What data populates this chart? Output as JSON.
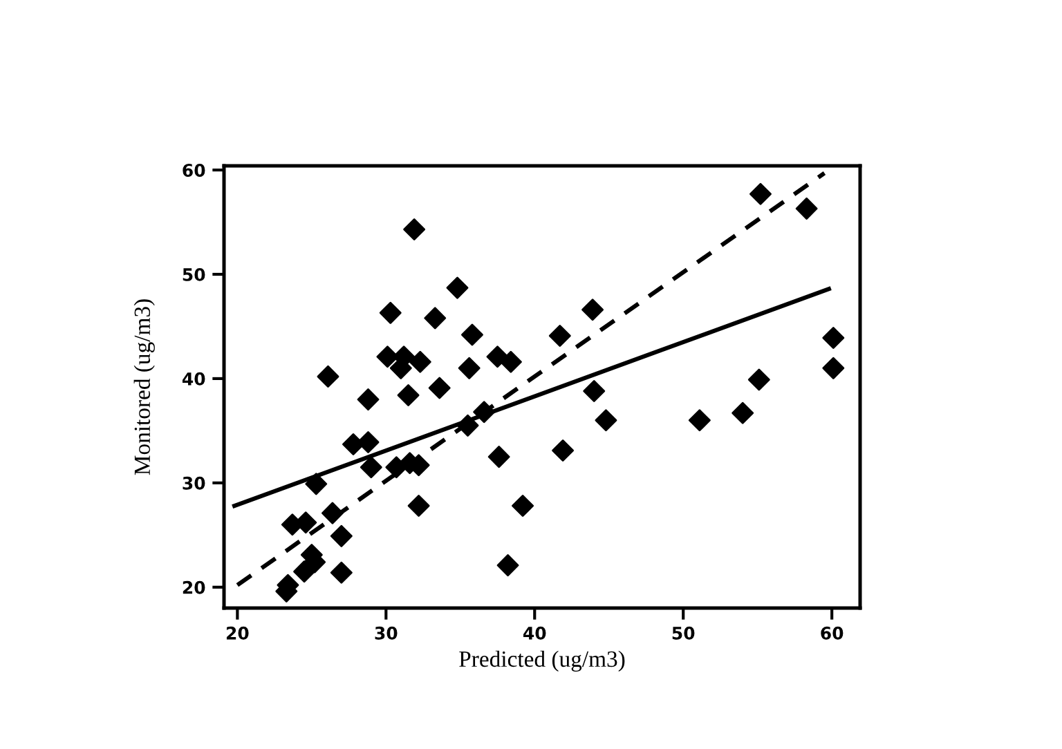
{
  "chart_data": {
    "type": "scatter",
    "xlabel": "Predicted (ug/m3)",
    "ylabel": "Monitored (ug/m3)",
    "xlim": [
      19.1,
      61.9
    ],
    "ylim": [
      18.0,
      60.4
    ],
    "xticks": [
      20,
      30,
      40,
      50,
      60
    ],
    "yticks": [
      20,
      30,
      40,
      50,
      60
    ],
    "grid": false,
    "legend": false,
    "series": [
      {
        "color": "#000000",
        "marker": "diamond",
        "x": [
          31.9,
          34.8,
          30.3,
          33.3,
          35.8,
          26.1,
          30.1,
          31.2,
          31.0,
          32.3,
          35.6,
          37.5,
          38.4,
          28.8,
          31.5,
          33.6,
          36.6,
          35.5,
          27.8,
          28.8,
          29.0,
          30.7,
          31.6,
          32.2,
          25.3,
          37.6,
          26.4,
          32.2,
          39.2,
          23.7,
          24.6,
          27.0,
          25.0,
          25.2,
          24.5,
          27.0,
          38.2,
          23.4,
          23.3,
          55.2,
          58.3,
          43.9,
          41.7,
          60.1,
          60.1,
          55.1,
          44.0,
          44.8,
          51.1,
          54.0,
          41.9
        ],
        "values": [
          54.3,
          48.7,
          46.3,
          45.8,
          44.2,
          40.2,
          42.1,
          42.1,
          41.0,
          41.6,
          41.0,
          42.1,
          41.6,
          38.0,
          38.4,
          39.1,
          36.8,
          35.5,
          33.7,
          33.9,
          31.5,
          31.5,
          31.9,
          31.7,
          29.9,
          32.5,
          27.1,
          27.8,
          27.8,
          26.0,
          26.2,
          24.9,
          23.1,
          22.4,
          21.5,
          21.4,
          22.1,
          20.2,
          19.6,
          57.7,
          56.3,
          46.6,
          44.1,
          43.9,
          41.0,
          39.9,
          38.8,
          36.0,
          36.0,
          36.7,
          33.1
        ]
      },
      {
        "type": "line",
        "color": "#000000",
        "line_style": "solid",
        "marker": "none",
        "x": [
          19.8,
          59.8
        ],
        "values": [
          27.8,
          48.6
        ]
      },
      {
        "type": "line",
        "color": "#000000",
        "line_style": "dashed",
        "marker": "none",
        "x": [
          20,
          59.5
        ],
        "values": [
          20.2,
          59.7
        ]
      }
    ]
  }
}
